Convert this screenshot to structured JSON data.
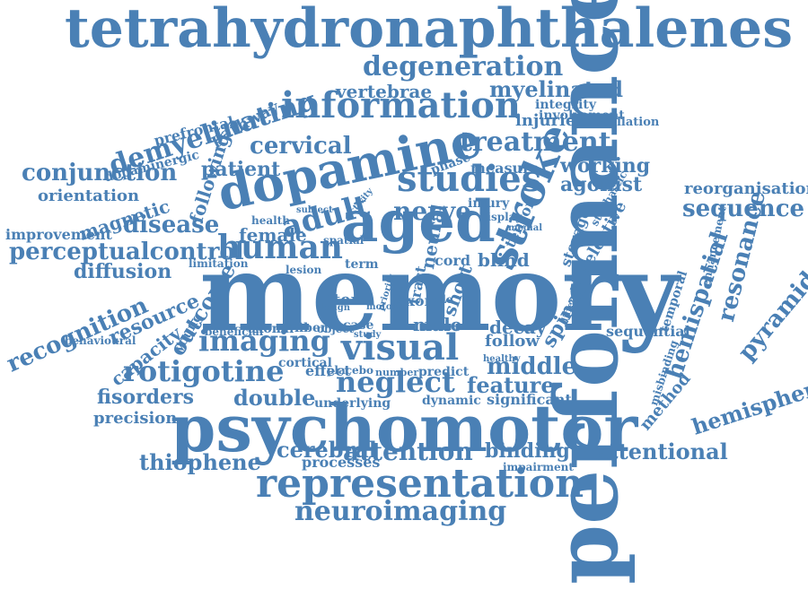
{
  "style": {
    "word_color": "#4a80b5",
    "background": "#ffffff"
  },
  "words": [
    "tetrahydronaphthalenes",
    "performance",
    "memory",
    "psychomotor",
    "dopamine",
    "aged",
    "representation",
    "information",
    "degeneration",
    "stroke",
    "studies",
    "adult",
    "human",
    "visual",
    "imaging",
    "neglect",
    "rotigotine",
    "treatment",
    "demyelinating",
    "myelinated",
    "vertebrae",
    "cervical",
    "patient",
    "conjunction",
    "orientation",
    "magnetic",
    "disease",
    "perceptualcontrol",
    "improvement",
    "diffusion",
    "recognition",
    "capacity",
    "outcome",
    "resource",
    "following",
    "female",
    "nerve",
    "neural",
    "blind",
    "agonist",
    "working",
    "measure",
    "reorganisation",
    "sequence",
    "selective",
    "storage",
    "hemispatial",
    "resonance",
    "pyramidal",
    "hemisphere",
    "attentional",
    "attention",
    "cerebral",
    "thiophene",
    "neuroimaging",
    "binding",
    "feature",
    "middle",
    "follow",
    "decay",
    "male",
    "spinal",
    "double",
    "fisorders",
    "precision",
    "effect",
    "dynamic",
    "significant",
    "sequential",
    "method",
    "prefrontal",
    "pathway",
    "dopaminergic",
    "integrity",
    "involvement",
    "injuries",
    "cancellation",
    "phase",
    "injury",
    "tensor",
    "stochastic",
    "health",
    "term",
    "cord",
    "short",
    "behavioural",
    "young",
    "axonal",
    "fiber",
    "object",
    "case",
    "study",
    "item",
    "design",
    "tract",
    "cortical",
    "underlying",
    "processes",
    "impairment",
    "placebo",
    "number",
    "predict",
    "temporal",
    "enhancement",
    "misbinding",
    "different",
    "beneficial",
    "limitation",
    "lesion",
    "subject",
    "activity",
    "display",
    "medial",
    "spatial",
    "healthy",
    "axon",
    "role",
    "motor",
    "priority",
    "thesis"
  ]
}
